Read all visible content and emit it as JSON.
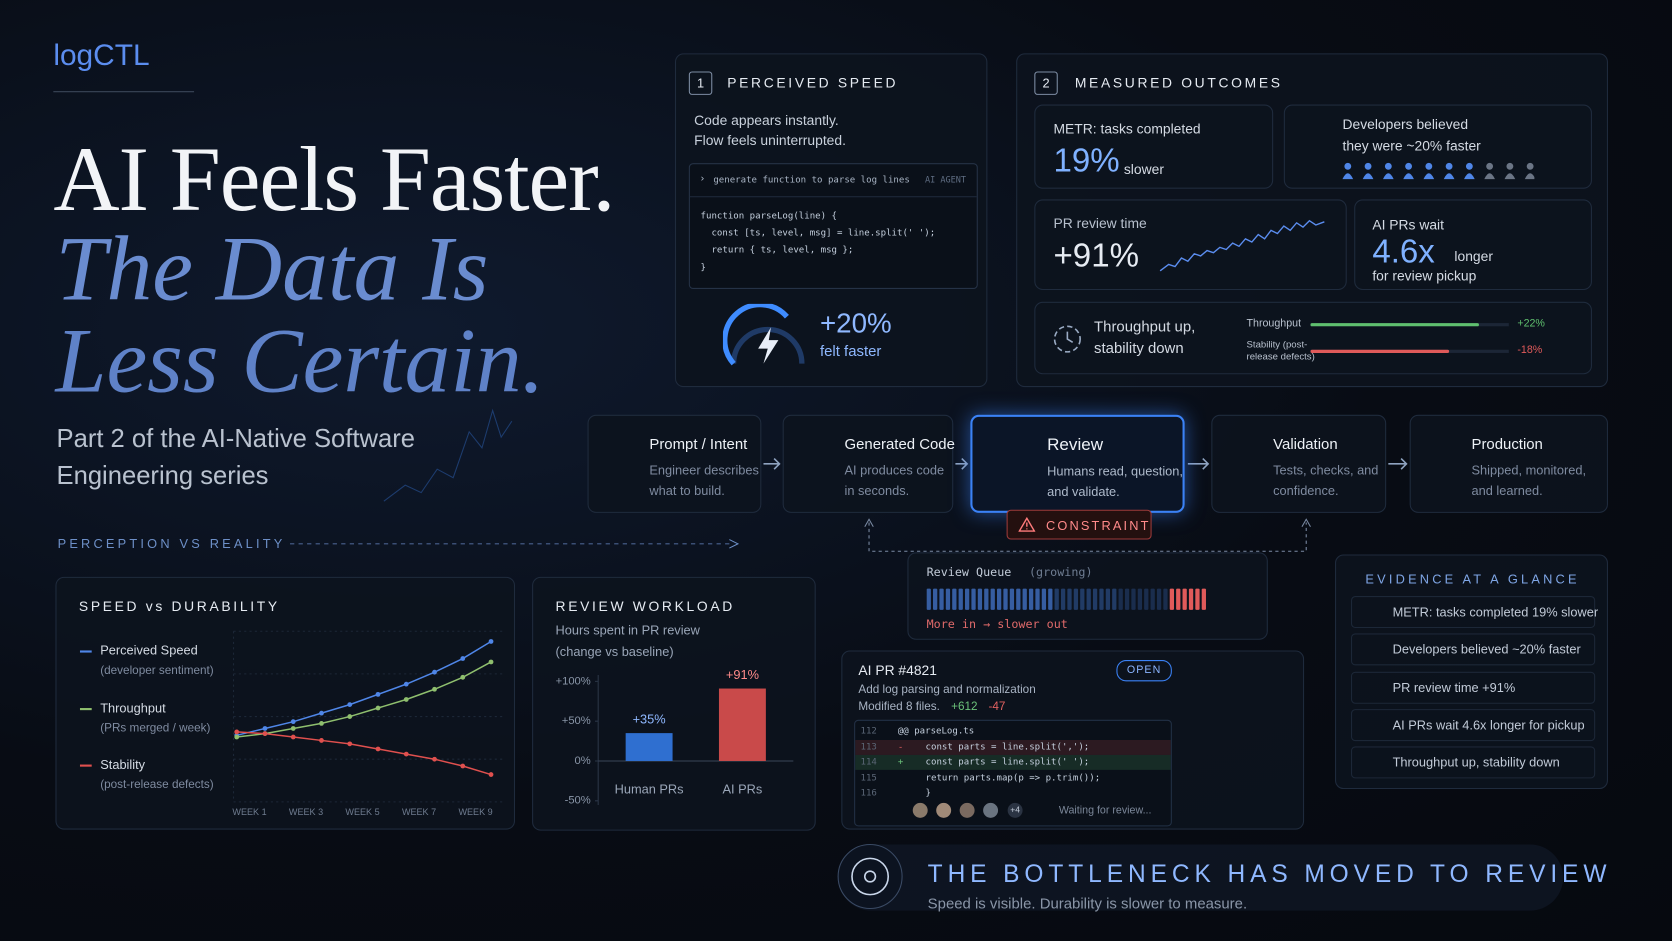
{
  "brand": "logCTL",
  "hero": {
    "title": "AI Feels Faster.",
    "subtitle": [
      "The Data Is",
      "Less Certain."
    ],
    "series_note": "Part 2 of the AI-Native Software Engineering series",
    "section_label": "PERCEPTION VS REALITY"
  },
  "perceived": {
    "number": "1",
    "title": "PERCEIVED SPEED",
    "lines": [
      "Code appears instantly.",
      "Flow feels uninterrupted."
    ],
    "prompt": "generate function to parse log lines",
    "agent": "AI AGENT",
    "code": [
      "function parseLog(line) {",
      "  const [ts, level, msg] = line.split(' ');",
      "  return { ts, level, msg };",
      "}"
    ],
    "stat": "+20%",
    "stat_label": "felt faster"
  },
  "measured": {
    "number": "2",
    "title": "MEASURED OUTCOMES",
    "metr": {
      "label": "METR: tasks completed",
      "value": "19%",
      "suffix": "slower"
    },
    "belief": [
      "Developers believed",
      "they were ~20% faster"
    ],
    "pr_review": {
      "label": "PR review time",
      "value": "+91%"
    },
    "ai_prs": {
      "label": "AI PRs wait",
      "value": "4.6x",
      "suffix": "longer",
      "note": "for review pickup"
    },
    "tradeoff": {
      "lines": [
        "Throughput up,",
        "stability down"
      ],
      "bars": {
        "type": "bar",
        "categories": [
          "Throughput",
          "Stability (post-release defects)"
        ],
        "values": [
          22,
          -18
        ],
        "value_labels": [
          "+22%",
          "-18%"
        ],
        "colors": [
          "#5fbf6e",
          "#e05a5a"
        ]
      }
    }
  },
  "flow": {
    "steps": [
      {
        "title": "Prompt / Intent",
        "text": "Engineer describes what to build."
      },
      {
        "title": "Generated Code",
        "text": "AI produces code in seconds."
      },
      {
        "title": "Review",
        "text": "Humans read, question, and validate."
      },
      {
        "title": "Validation",
        "text": "Tests, checks, and confidence."
      },
      {
        "title": "Production",
        "text": "Shipped, monitored, and learned."
      }
    ],
    "constraint": "CONSTRAINT",
    "queue": {
      "title": "Review Queue",
      "note": "(growing)",
      "caption": "More in → slower out"
    }
  },
  "speed_chart": {
    "type": "line",
    "title": "SPEED vs DURABILITY",
    "categories": [
      "WEEK 1",
      null,
      "WEEK 3",
      null,
      "WEEK 5",
      null,
      "WEEK 7",
      null,
      "WEEK 9",
      null
    ],
    "series": [
      {
        "name": "Perceived Speed",
        "note": "(developer sentiment)",
        "color": "#4f86e8",
        "values": [
          39,
          43,
          47,
          52,
          57,
          63,
          69,
          76,
          84,
          94
        ]
      },
      {
        "name": "Throughput",
        "note": "(PRs merged / week)",
        "color": "#8fbf6e",
        "values": [
          38,
          40,
          43,
          46,
          50,
          55,
          60,
          66,
          73,
          82
        ]
      },
      {
        "name": "Stability",
        "note": "(post-release defects)",
        "color": "#e0504e",
        "values": [
          41,
          40,
          38,
          36,
          34,
          31,
          28,
          25,
          21,
          16
        ]
      }
    ],
    "ylim": [
      0,
      100
    ],
    "yticks": [
      0,
      25,
      50,
      75,
      100
    ],
    "grid": true
  },
  "workload_chart": {
    "type": "bar",
    "title": "REVIEW WORKLOAD",
    "subtitle": [
      "Hours spent in PR review",
      "(change vs baseline)"
    ],
    "categories": [
      "Human PRs",
      "AI PRs"
    ],
    "values": [
      35,
      91
    ],
    "value_labels": [
      "+35%",
      "+91%"
    ],
    "colors": [
      "#2f6fd0",
      "#c94a4a"
    ],
    "ylim": [
      -50,
      100
    ],
    "yticks": [
      {
        "value": -50,
        "label": "-50%"
      },
      {
        "value": 0,
        "label": "0%"
      },
      {
        "value": 50,
        "label": "+50%"
      },
      {
        "value": 100,
        "label": "+100%"
      }
    ]
  },
  "pr": {
    "title": "AI PR #4821",
    "status": "OPEN",
    "summary": "Add log parsing and normalization",
    "files": "Modified 8 files.",
    "added": "+612",
    "removed": "-47",
    "diff": [
      {
        "n": "112",
        "sign": "",
        "code": "@@ parseLog.ts"
      },
      {
        "n": "113",
        "sign": "-",
        "code": "const parts = line.split(',');"
      },
      {
        "n": "114",
        "sign": "+",
        "code": "const parts = line.split(' ');"
      },
      {
        "n": "115",
        "sign": "",
        "code": "return parts.map(p => p.trim());"
      },
      {
        "n": "116",
        "sign": "",
        "code": "}"
      }
    ],
    "extra_reviewers": "+4",
    "waiting": "Waiting for review..."
  },
  "evidence": {
    "title": "EVIDENCE AT A GLANCE",
    "items": [
      "METR: tasks completed 19% slower",
      "Developers believed ~20% faster",
      "PR review time +91%",
      "AI PRs wait 4.6x longer for pickup",
      "Throughput up, stability down"
    ]
  },
  "footer": {
    "headline": "THE BOTTLENECK HAS MOVED TO REVIEW",
    "sub": "Speed is visible. Durability is slower to measure."
  }
}
